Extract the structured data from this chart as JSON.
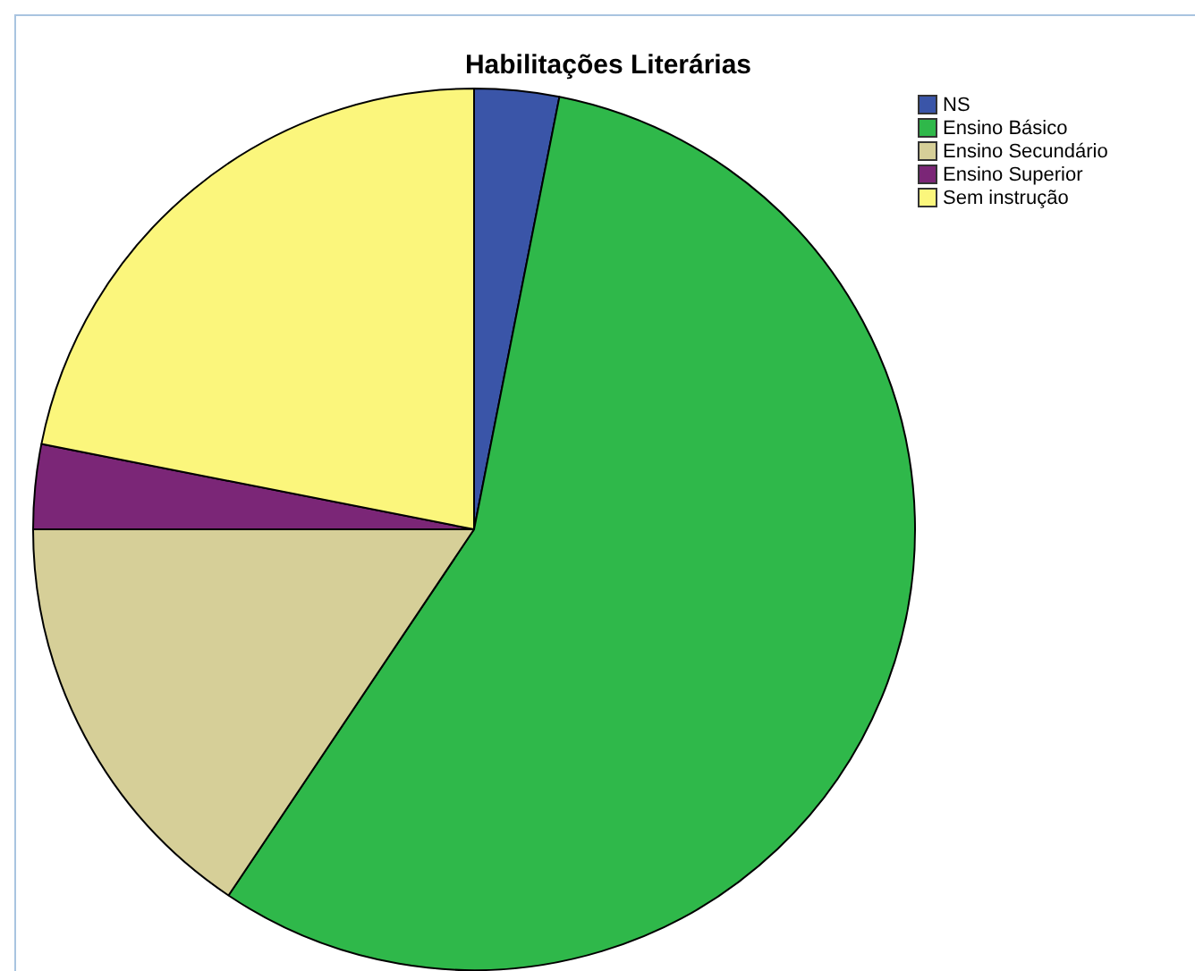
{
  "chart_data": {
    "type": "pie",
    "title": "Habilitações Literárias",
    "categories": [
      "NS",
      "Ensino Básico",
      "Ensino Secundário",
      "Ensino Superior",
      "Sem instrução"
    ],
    "values": [
      3.1,
      56.3,
      15.6,
      3.1,
      21.9
    ],
    "colors": [
      "#3a55a8",
      "#2fb84a",
      "#d6cf98",
      "#7b2677",
      "#fbf67c"
    ],
    "legend": "top right"
  }
}
